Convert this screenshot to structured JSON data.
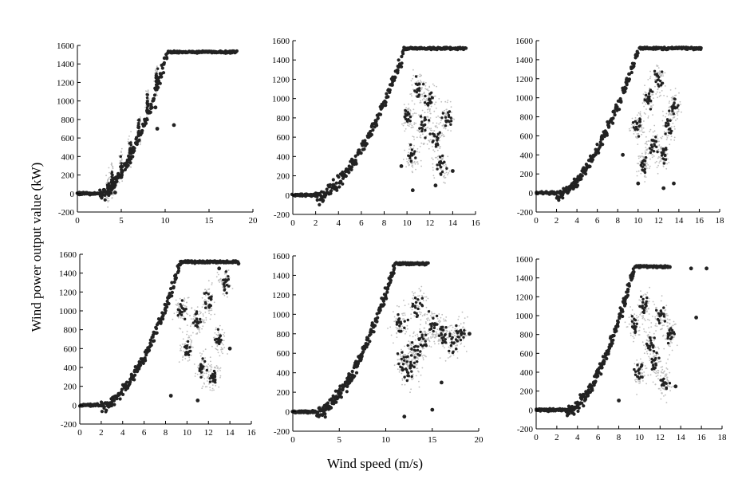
{
  "figure": {
    "shared_ylabel": "Wind power output value (kW)",
    "shared_xlabel": "Wind speed (m/s)",
    "point_color": "#222222",
    "scatter_color": "#bdbdbd"
  },
  "chart_data": [
    {
      "type": "scatter",
      "xlim": [
        0,
        20
      ],
      "ylim": [
        -200,
        1600
      ],
      "xticks": [
        0,
        5,
        10,
        15,
        20
      ],
      "yticks": [
        -200,
        0,
        200,
        400,
        600,
        800,
        1000,
        1200,
        1400,
        1600
      ],
      "curve": {
        "cut_in": 2.5,
        "rated_speed": 10.2,
        "cut_out": 18.2,
        "rated_power": 1530
      },
      "scatter": {
        "dense": [
          [
            3.5,
            60
          ],
          [
            4.0,
            140
          ],
          [
            5.0,
            280
          ],
          [
            6.0,
            470
          ],
          [
            7.0,
            690
          ],
          [
            8.0,
            960
          ],
          [
            9.0,
            1230
          ]
        ],
        "outliers": [
          [
            11.0,
            740
          ],
          [
            9.1,
            700
          ],
          [
            4.3,
            10
          ],
          [
            3.9,
            120
          ],
          [
            8.9,
            930
          ]
        ],
        "spread": 0.3
      }
    },
    {
      "type": "scatter",
      "xlim": [
        0,
        16
      ],
      "ylim": [
        -200,
        1600
      ],
      "xticks": [
        0,
        2,
        4,
        6,
        8,
        10,
        12,
        14,
        16
      ],
      "yticks": [
        -200,
        0,
        200,
        400,
        600,
        800,
        1000,
        1200,
        1400,
        1600
      ],
      "curve": {
        "cut_in": 2.0,
        "rated_speed": 9.8,
        "cut_out": 15.2,
        "rated_power": 1520
      },
      "scatter": {
        "dense": [
          [
            10.5,
            400
          ],
          [
            11.5,
            700
          ],
          [
            12.5,
            600
          ],
          [
            13.0,
            300
          ],
          [
            11.0,
            1100
          ],
          [
            12.0,
            1000
          ],
          [
            13.5,
            800
          ],
          [
            10.0,
            800
          ]
        ],
        "outliers": [
          [
            10.5,
            50
          ],
          [
            12.5,
            100
          ],
          [
            14.0,
            250
          ],
          [
            9.5,
            300
          ]
        ],
        "spread": 1.0
      }
    },
    {
      "type": "scatter",
      "xlim": [
        0,
        18
      ],
      "ylim": [
        -200,
        1600
      ],
      "xticks": [
        0,
        2,
        4,
        6,
        8,
        10,
        12,
        14,
        16,
        18
      ],
      "yticks": [
        -200,
        0,
        200,
        400,
        600,
        800,
        1000,
        1200,
        1400,
        1600
      ],
      "curve": {
        "cut_in": 2.0,
        "rated_speed": 10.0,
        "cut_out": 16.2,
        "rated_power": 1520
      },
      "scatter": {
        "dense": [
          [
            10.5,
            300
          ],
          [
            11.5,
            500
          ],
          [
            12.5,
            400
          ],
          [
            13.0,
            700
          ],
          [
            11.0,
            1000
          ],
          [
            12.0,
            1200
          ],
          [
            13.5,
            900
          ],
          [
            10.0,
            700
          ]
        ],
        "outliers": [
          [
            10.0,
            100
          ],
          [
            12.5,
            50
          ],
          [
            13.5,
            100
          ],
          [
            8.5,
            400
          ],
          [
            16.0,
            1520
          ]
        ],
        "spread": 1.0
      }
    },
    {
      "type": "scatter",
      "xlim": [
        0,
        16
      ],
      "ylim": [
        -200,
        1600
      ],
      "xticks": [
        0,
        2,
        4,
        6,
        8,
        10,
        12,
        14,
        16
      ],
      "yticks": [
        -200,
        0,
        200,
        400,
        600,
        800,
        1000,
        1200,
        1400,
        1600
      ],
      "curve": {
        "cut_in": 2.0,
        "rated_speed": 9.4,
        "cut_out": 14.8,
        "rated_power": 1520
      },
      "scatter": {
        "dense": [
          [
            10.0,
            600
          ],
          [
            11.0,
            900
          ],
          [
            12.0,
            1100
          ],
          [
            11.5,
            400
          ],
          [
            13.0,
            700
          ],
          [
            12.5,
            300
          ],
          [
            9.5,
            1000
          ],
          [
            13.5,
            1300
          ]
        ],
        "outliers": [
          [
            8.5,
            100
          ],
          [
            11.0,
            50
          ],
          [
            14.0,
            600
          ],
          [
            14.8,
            1500
          ],
          [
            13.0,
            1450
          ]
        ],
        "spread": 1.0
      }
    },
    {
      "type": "scatter",
      "xlim": [
        0,
        20
      ],
      "ylim": [
        -200,
        1600
      ],
      "xticks": [
        0,
        5,
        10,
        15,
        20
      ],
      "yticks": [
        -200,
        0,
        200,
        400,
        600,
        800,
        1000,
        1200,
        1400,
        1600
      ],
      "curve": {
        "cut_in": 2.5,
        "rated_speed": 11.0,
        "cut_out": 14.5,
        "rated_power": 1520
      },
      "scatter": {
        "dense": [
          [
            12.0,
            500
          ],
          [
            12.5,
            400
          ],
          [
            13.0,
            600
          ],
          [
            14.0,
            700
          ],
          [
            15.0,
            900
          ],
          [
            16.0,
            800
          ],
          [
            17.0,
            700
          ],
          [
            13.5,
            1100
          ],
          [
            11.5,
            900
          ],
          [
            18.0,
            800
          ]
        ],
        "outliers": [
          [
            12.0,
            -50
          ],
          [
            15.0,
            20
          ],
          [
            19.0,
            800
          ],
          [
            16.0,
            300
          ]
        ],
        "spread": 1.6
      }
    },
    {
      "type": "scatter",
      "xlim": [
        0,
        18
      ],
      "ylim": [
        -200,
        1600
      ],
      "xticks": [
        0,
        2,
        4,
        6,
        8,
        10,
        12,
        14,
        16,
        18
      ],
      "yticks": [
        -200,
        0,
        200,
        400,
        600,
        800,
        1000,
        1200,
        1400,
        1600
      ],
      "curve": {
        "cut_in": 3.0,
        "rated_speed": 9.5,
        "cut_out": 13.0,
        "rated_power": 1520
      },
      "scatter": {
        "dense": [
          [
            10.0,
            400
          ],
          [
            11.0,
            700
          ],
          [
            12.0,
            1000
          ],
          [
            11.5,
            500
          ],
          [
            12.5,
            300
          ],
          [
            13.0,
            800
          ],
          [
            10.5,
            1100
          ],
          [
            9.5,
            900
          ]
        ],
        "outliers": [
          [
            8.0,
            100
          ],
          [
            13.5,
            250
          ],
          [
            15.0,
            1500
          ],
          [
            16.5,
            1500
          ],
          [
            15.5,
            980
          ]
        ],
        "spread": 1.0
      }
    }
  ]
}
